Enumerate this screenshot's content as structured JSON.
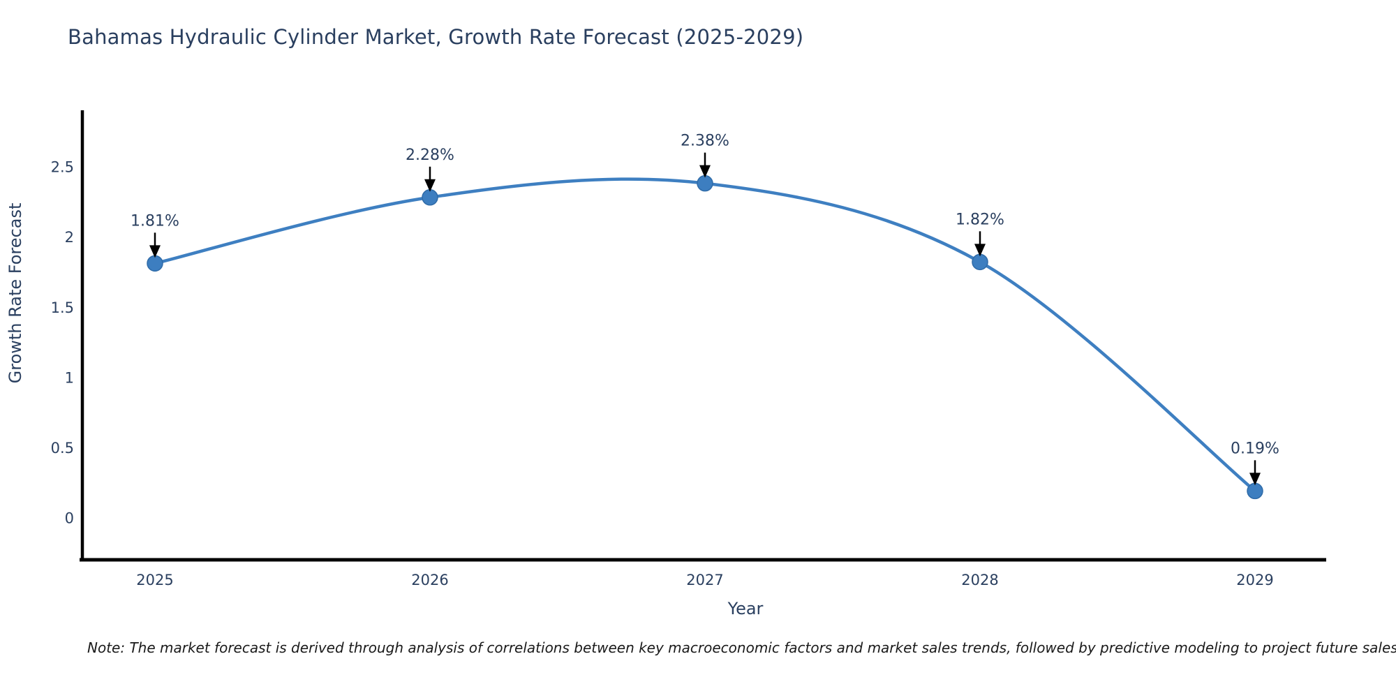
{
  "title": "Bahamas Hydraulic Cylinder Market, Growth Rate Forecast (2025-2029)",
  "note": "Note: The market forecast is derived through analysis of correlations between key macroeconomic factors and market sales trends, followed by predictive modeling to project future sales",
  "colors": {
    "title_text": "#2a3f5f",
    "axis_text": "#2a3f5f",
    "spine": "#000000",
    "line": "#3e7fc1",
    "marker": "#3d7ec0",
    "marker_edge": "#2f6ba8",
    "arrow": "#000000",
    "note_text": "#1a1a1a",
    "background": "#ffffff"
  },
  "chart_data": {
    "type": "line",
    "title": "Bahamas Hydraulic Cylinder Market, Growth Rate Forecast (2025-2029)",
    "x": [
      "2025",
      "2026",
      "2027",
      "2028",
      "2029"
    ],
    "series": [
      {
        "name": "Growth Rate Forecast",
        "values": [
          1.81,
          2.28,
          2.38,
          1.82,
          0.19
        ],
        "point_labels": [
          "1.81%",
          "2.28%",
          "2.38%",
          "1.82%",
          "0.19%"
        ]
      }
    ],
    "xlabel": "Year",
    "ylabel": "Growth Rate Forecast",
    "yticks": [
      0,
      0.5,
      1,
      1.5,
      2,
      2.5
    ],
    "ylim": [
      -0.3,
      2.9
    ],
    "grid": false,
    "legend": "none",
    "line_shape": "spline",
    "annotation_style": "value-label-with-down-arrow"
  }
}
